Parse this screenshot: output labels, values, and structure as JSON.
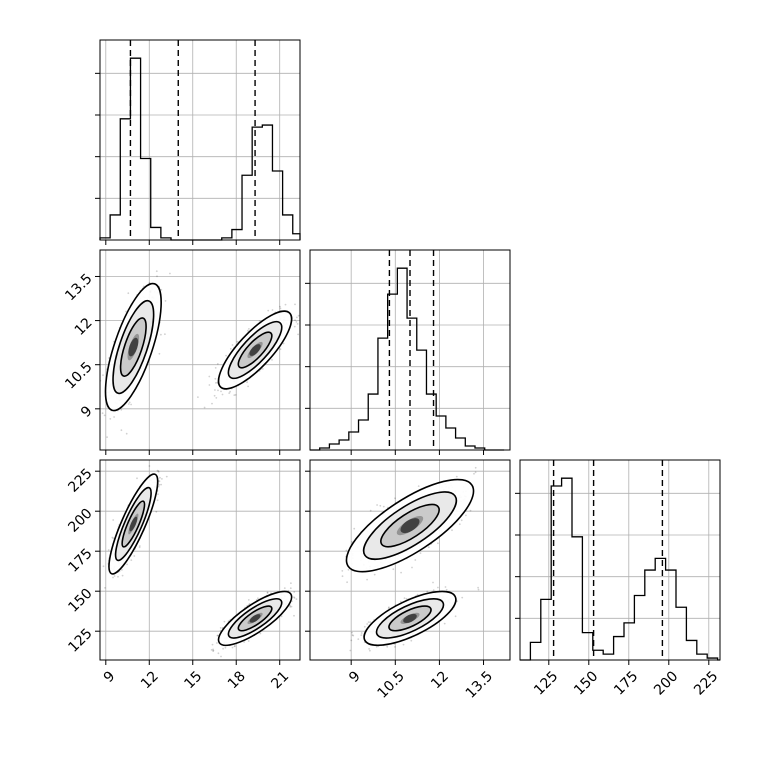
{
  "chart_data": {
    "type": "corner",
    "title": "",
    "grid": true,
    "parameters": [
      {
        "label": "",
        "range": [
          8.6,
          22.4
        ],
        "ticks": [
          9,
          12,
          15,
          18,
          21
        ],
        "quantiles": [
          10.7,
          14.0,
          19.3
        ]
      },
      {
        "label": "",
        "range": [
          7.6,
          14.4
        ],
        "ticks": [
          9.0,
          10.5,
          12.0,
          13.5
        ],
        "quantiles": [
          10.3,
          11.0,
          11.8
        ]
      },
      {
        "label": "",
        "range": [
          107,
          232
        ],
        "ticks": [
          125,
          150,
          175,
          200,
          225
        ],
        "quantiles": [
          128,
          153,
          196
        ]
      }
    ],
    "histograms": [
      {
        "param": 0,
        "bin_edges": [
          8.6,
          9.3,
          10.0,
          10.7,
          11.4,
          12.1,
          12.8,
          13.5,
          14.2,
          14.9,
          15.6,
          16.3,
          17.0,
          17.7,
          18.4,
          19.1,
          19.8,
          20.5,
          21.2,
          21.9,
          22.4
        ],
        "counts": [
          1,
          12,
          58,
          87,
          39,
          6,
          1,
          0,
          0,
          0,
          0,
          0,
          1,
          5,
          31,
          54,
          55,
          33,
          12,
          3
        ]
      },
      {
        "param": 1,
        "bin_edges": [
          7.6,
          7.93,
          8.26,
          8.59,
          8.92,
          9.25,
          9.58,
          9.91,
          10.24,
          10.57,
          10.9,
          11.23,
          11.56,
          11.89,
          12.22,
          12.55,
          12.88,
          13.21,
          13.54,
          13.87,
          14.2
        ],
        "counts": [
          0,
          1,
          3,
          5,
          9,
          15,
          28,
          56,
          78,
          91,
          66,
          50,
          28,
          17,
          11,
          6,
          2,
          1,
          0,
          0
        ]
      },
      {
        "param": 2,
        "bin_edges": [
          107,
          113.5,
          120,
          126.5,
          133,
          139.5,
          146,
          152.5,
          159,
          165.5,
          172,
          178.5,
          185,
          191.5,
          198,
          204.5,
          211,
          217.5,
          224,
          230.5,
          232
        ],
        "counts": [
          0,
          9,
          31,
          89,
          93,
          63,
          14,
          5,
          3,
          12,
          19,
          33,
          46,
          52,
          46,
          27,
          10,
          3,
          1,
          0
        ]
      }
    ],
    "joint": [
      {
        "x_param": 0,
        "y_param": 1,
        "clusters": [
          {
            "center": [
              10.9,
              11.1
            ],
            "sx": 0.8,
            "sy": 0.9,
            "rho": 0.7,
            "n": 900
          },
          {
            "center": [
              19.3,
              11.0
            ],
            "sx": 1.05,
            "sy": 0.55,
            "rho": 0.8,
            "n": 900
          }
        ]
      },
      {
        "x_param": 0,
        "y_param": 2,
        "clusters": [
          {
            "center": [
              10.9,
              192
            ],
            "sx": 0.7,
            "sy": 13,
            "rho": 0.85,
            "n": 900
          },
          {
            "center": [
              19.3,
              133
            ],
            "sx": 1.05,
            "sy": 7,
            "rho": 0.8,
            "n": 900
          }
        ]
      },
      {
        "x_param": 1,
        "y_param": 2,
        "clusters": [
          {
            "center": [
              11.0,
              191
            ],
            "sx": 0.9,
            "sy": 12,
            "rho": 0.75,
            "n": 900
          },
          {
            "center": [
              11.0,
              133
            ],
            "sx": 0.65,
            "sy": 7,
            "rho": 0.7,
            "n": 900
          }
        ]
      }
    ]
  }
}
